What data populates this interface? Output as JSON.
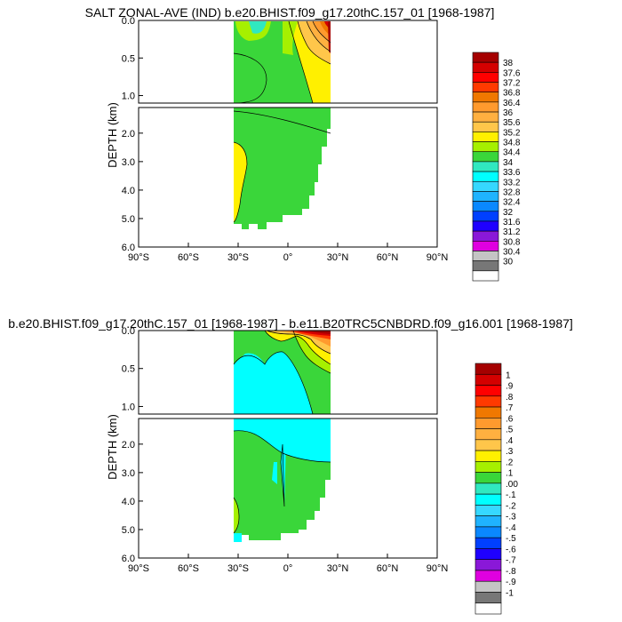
{
  "chart_data": [
    {
      "type": "heatmap",
      "title": "SALT ZONAL-AVE (IND) b.e20.BHIST.f09_g17.20thC.157_01 [1968-1987]",
      "ylabel": "DEPTH (km)",
      "x_ticks": [
        "90°S",
        "60°S",
        "30°S",
        "0°",
        "30°N",
        "60°N",
        "90°N"
      ],
      "x_values": [
        -90,
        -60,
        -30,
        0,
        30,
        60,
        90
      ],
      "upper_y_ticks": [
        "0.0",
        "0.5",
        "1.0"
      ],
      "upper_y_values": [
        0,
        0.5,
        1.0
      ],
      "lower_y_ticks": [
        "2.0",
        "3.0",
        "4.0",
        "5.0",
        "6.0"
      ],
      "lower_y_values": [
        2,
        3,
        4,
        5,
        6
      ],
      "xlim": [
        -90,
        90
      ],
      "upper_ylim": [
        0,
        1.1
      ],
      "lower_ylim": [
        1.1,
        6.0
      ],
      "colorbar_labels": [
        "38",
        "37.6",
        "37.2",
        "36.8",
        "36.4",
        "36",
        "35.6",
        "35.2",
        "34.8",
        "34.4",
        "34",
        "33.6",
        "33.2",
        "32.8",
        "32.4",
        "32",
        "31.6",
        "31.2",
        "30.8",
        "30.4",
        "30"
      ],
      "colorbar_colors": [
        "#a50000",
        "#d40000",
        "#ff0000",
        "#ff3a00",
        "#f07800",
        "#ff9a2e",
        "#ffb040",
        "#ffc64a",
        "#fff000",
        "#a6f000",
        "#3ad63a",
        "#30e8c0",
        "#00ffff",
        "#36d8ff",
        "#1fb3ff",
        "#0a88ff",
        "#0040ff",
        "#1f00ff",
        "#8a18d8",
        "#e000e0",
        "#c4c4c4",
        "#777777",
        "#ffffff"
      ]
    },
    {
      "type": "heatmap",
      "title": "b.e20.BHIST.f09_g17.20thC.157_01 [1968-1987] - b.e11.B20TRC5CNBDRD.f09_g16.001 [1968-1987]",
      "ylabel": "DEPTH (km)",
      "x_ticks": [
        "90°S",
        "60°S",
        "30°S",
        "0°",
        "30°N",
        "60°N",
        "90°N"
      ],
      "x_values": [
        -90,
        -60,
        -30,
        0,
        30,
        60,
        90
      ],
      "upper_y_ticks": [
        "0.0",
        "0.5",
        "1.0"
      ],
      "upper_y_values": [
        0,
        0.5,
        1.0
      ],
      "lower_y_ticks": [
        "2.0",
        "3.0",
        "4.0",
        "5.0",
        "6.0"
      ],
      "lower_y_values": [
        2,
        3,
        4,
        5,
        6
      ],
      "xlim": [
        -90,
        90
      ],
      "upper_ylim": [
        0,
        1.1
      ],
      "lower_ylim": [
        1.1,
        6.0
      ],
      "colorbar_labels": [
        "1",
        ".9",
        ".8",
        ".7",
        ".6",
        ".5",
        ".4",
        ".3",
        ".2",
        ".1",
        ".00",
        "-.1",
        "-.2",
        "-.3",
        "-.4",
        "-.5",
        "-.6",
        "-.7",
        "-.8",
        "-.9",
        "-1"
      ],
      "colorbar_colors": [
        "#a50000",
        "#d40000",
        "#ff0000",
        "#ff3a00",
        "#f07800",
        "#ff9a2e",
        "#ffb040",
        "#ffc64a",
        "#fff000",
        "#a6f000",
        "#3ad63a",
        "#30e8c0",
        "#00ffff",
        "#36d8ff",
        "#1fb3ff",
        "#0a88ff",
        "#0040ff",
        "#1f00ff",
        "#8a18d8",
        "#e000e0",
        "#c4c4c4",
        "#777777",
        "#ffffff"
      ]
    }
  ]
}
